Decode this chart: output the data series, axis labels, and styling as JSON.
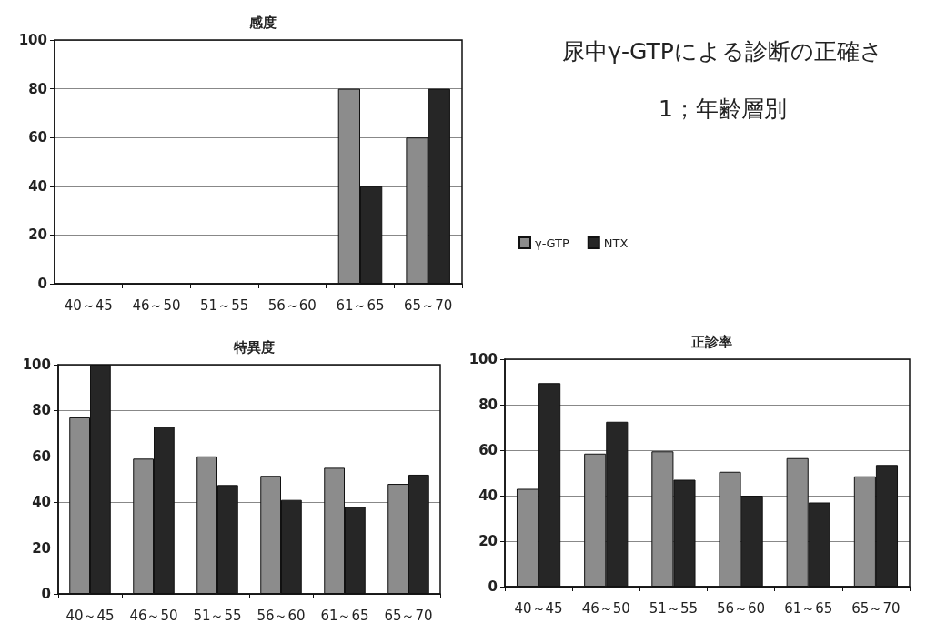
{
  "chart_data": [
    {
      "type": "bar",
      "title": "感度",
      "categories": [
        "40～45",
        "46～50",
        "51～55",
        "56～60",
        "61～65",
        "65～70"
      ],
      "series": [
        {
          "name": "γ-GTP",
          "color": "#8c8c8c",
          "values": [
            0,
            0,
            0,
            0,
            80,
            60
          ]
        },
        {
          "name": "NTX",
          "color": "#262626",
          "values": [
            0,
            0,
            0,
            0,
            40,
            80
          ]
        }
      ],
      "ylim": [
        0,
        100
      ],
      "yticks": [
        0,
        20,
        40,
        60,
        80,
        100
      ],
      "grid": "y",
      "legend": "right"
    },
    {
      "type": "bar",
      "title": "特異度",
      "categories": [
        "40～45",
        "46～50",
        "51～55",
        "56～60",
        "61～65",
        "65～70"
      ],
      "series": [
        {
          "color": "#8c8c8c",
          "values": [
            77,
            59,
            60,
            51.5,
            55,
            48
          ]
        },
        {
          "color": "#262626",
          "values": [
            100,
            73,
            47.5,
            41,
            38,
            52
          ]
        }
      ],
      "ylim": [
        0,
        100
      ],
      "yticks": [
        0,
        20,
        40,
        60,
        80,
        100
      ],
      "grid": "y"
    },
    {
      "type": "bar",
      "title": "正診率",
      "categories": [
        "40～45",
        "46～50",
        "51～55",
        "56～60",
        "61～65",
        "65～70"
      ],
      "series": [
        {
          "color": "#8c8c8c",
          "values": [
            43,
            58.5,
            59.5,
            50.5,
            56.5,
            48.5
          ]
        },
        {
          "color": "#262626",
          "values": [
            89.5,
            72.5,
            47,
            40,
            37,
            53.5
          ]
        }
      ],
      "ylim": [
        0,
        100
      ],
      "yticks": [
        0,
        20,
        40,
        60,
        80,
        100
      ],
      "grid": "y"
    },
    {
      "type": "other",
      "title": "尿中γ-GTPによる診断の正確さ",
      "subtitle": "1；年齢層別"
    }
  ]
}
